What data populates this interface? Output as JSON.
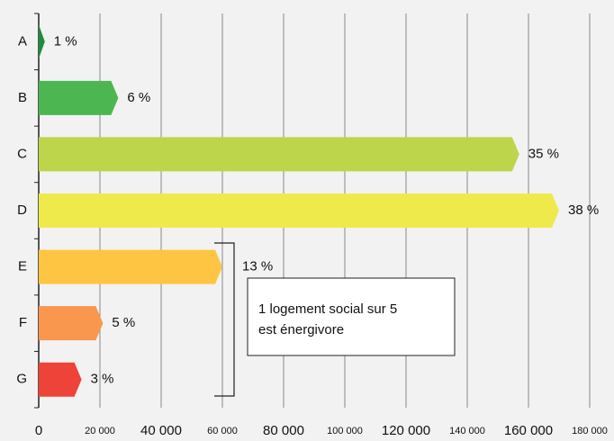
{
  "chart_data": {
    "type": "bar",
    "orientation": "horizontal",
    "categories": [
      "A",
      "B",
      "C",
      "D",
      "E",
      "F",
      "G"
    ],
    "values": [
      2000,
      26000,
      157000,
      170000,
      60000,
      21000,
      14000
    ],
    "share_labels": [
      "1 %",
      "6 %",
      "35 %",
      "38 %",
      "13 %",
      "5 %",
      "3 %"
    ],
    "colors": [
      "#1f8b3f",
      "#4cb750",
      "#bdd54b",
      "#efea4b",
      "#fec543",
      "#f8974d",
      "#ee4338"
    ],
    "xlim": [
      0,
      180000
    ],
    "xticks": [
      0,
      {
        "value": 20000,
        "label": "20 000"
      },
      {
        "value": 40000,
        "label": "40 000"
      },
      {
        "value": 60000,
        "label": "60 000"
      },
      {
        "value": 80000,
        "label": "80 000"
      },
      {
        "value": 100000,
        "label": "100 000"
      },
      {
        "value": 120000,
        "label": "120 000"
      },
      {
        "value": 140000,
        "label": "140 000"
      },
      {
        "value": 160000,
        "label": "160 000"
      },
      {
        "value": 180000,
        "label": "180 000"
      }
    ],
    "grid": true,
    "annotation": [
      "1 logement social sur 5",
      "est énergivore"
    ]
  }
}
